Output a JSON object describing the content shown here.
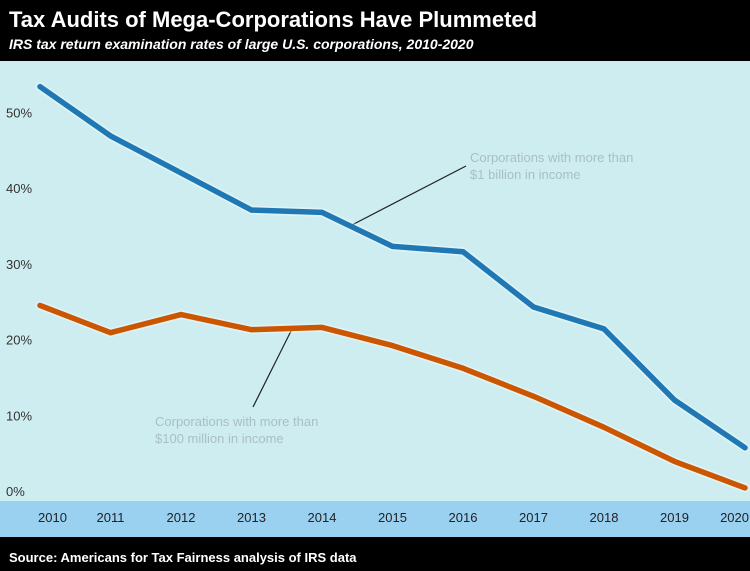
{
  "chart_data": {
    "type": "line",
    "title": "Tax Audits of Mega-Corporations Have Plummeted",
    "subtitle": "IRS tax return examination rates of large U.S. corporations, 2010-2020",
    "source": "Source:  Americans for Tax Fairness analysis of IRS data",
    "x": [
      "2010",
      "2011",
      "2012",
      "2013",
      "2014",
      "2015",
      "2016",
      "2017",
      "2018",
      "2019",
      "2020"
    ],
    "y_ticks": [
      "0%",
      "10%",
      "20%",
      "30%",
      "40%",
      "50%"
    ],
    "ylim": [
      0,
      58
    ],
    "grid": false,
    "series": [
      {
        "values": [
          54.6,
          48.1,
          43.2,
          38.3,
          38.0,
          33.5,
          32.8,
          25.5,
          22.6,
          13.2,
          6.9
        ],
        "color": "#1f77b4"
      },
      {
        "values": [
          25.7,
          22.1,
          24.5,
          22.5,
          22.8,
          20.4,
          17.4,
          13.7,
          9.6,
          5.1,
          1.6
        ],
        "color": "#cc5500"
      }
    ],
    "annotations": [
      {
        "series": 0,
        "lines": [
          "Corporations with more than",
          "$1 billion in income"
        ]
      },
      {
        "series": 1,
        "lines": [
          "Corporations with more than",
          "$100 million in income"
        ]
      }
    ],
    "colors": {
      "plot_background": "#cdedf0",
      "x_axis_band": "#9ad1f0",
      "banner": "#000000"
    }
  }
}
